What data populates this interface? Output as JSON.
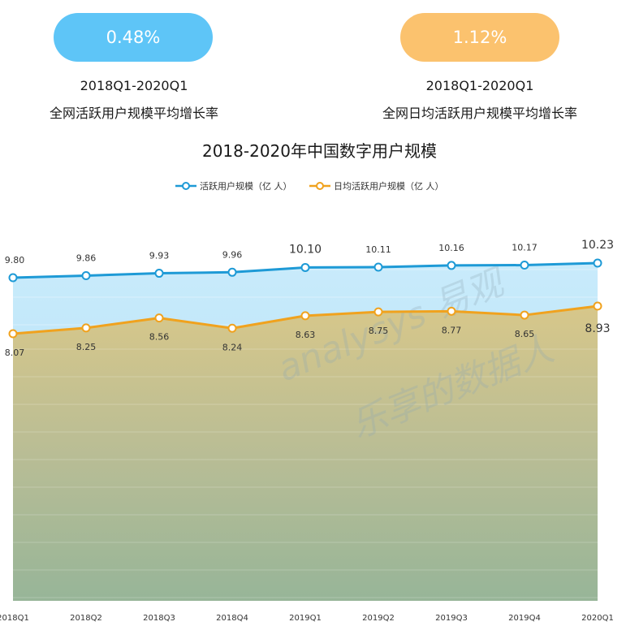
{
  "kpis": [
    {
      "value": "0.48%",
      "period": "2018Q1-2020Q1",
      "description": "全网活跃用户规模平均增长率",
      "color": "#5ec5f7"
    },
    {
      "value": "1.12%",
      "period": "2018Q1-2020Q1",
      "description": "全网日均活跃用户规模平均增长率",
      "color": "#fbc26e"
    }
  ],
  "watermark": {
    "line1": "analysys 易观",
    "line2": "乐享的数据人"
  },
  "chart_data": {
    "type": "area",
    "title": "2018-2020年中国数字用户规模",
    "categories": [
      "2018Q1",
      "2018Q2",
      "2018Q3",
      "2018Q4",
      "2019Q1",
      "2019Q2",
      "2019Q3",
      "2019Q4",
      "2020Q1"
    ],
    "series": [
      {
        "name": "活跃用户规模（亿 人）",
        "color": "#1e9ad6",
        "values": [
          9.8,
          9.86,
          9.93,
          9.96,
          10.1,
          10.11,
          10.16,
          10.17,
          10.23
        ],
        "labels": [
          "9.80",
          "9.86",
          "9.93",
          "9.96",
          "10.10",
          "10.11",
          "10.16",
          "10.17",
          "10.23"
        ]
      },
      {
        "name": "日均活跃用户规模（亿 人）",
        "color": "#f0a21e",
        "values": [
          8.07,
          8.25,
          8.56,
          8.24,
          8.63,
          8.75,
          8.77,
          8.65,
          8.93
        ],
        "labels": [
          "8.07",
          "8.25",
          "8.56",
          "8.24",
          "8.63",
          "8.75",
          "8.77",
          "8.65",
          "8.93"
        ]
      }
    ],
    "legend_position": "top-center",
    "grid": true
  }
}
